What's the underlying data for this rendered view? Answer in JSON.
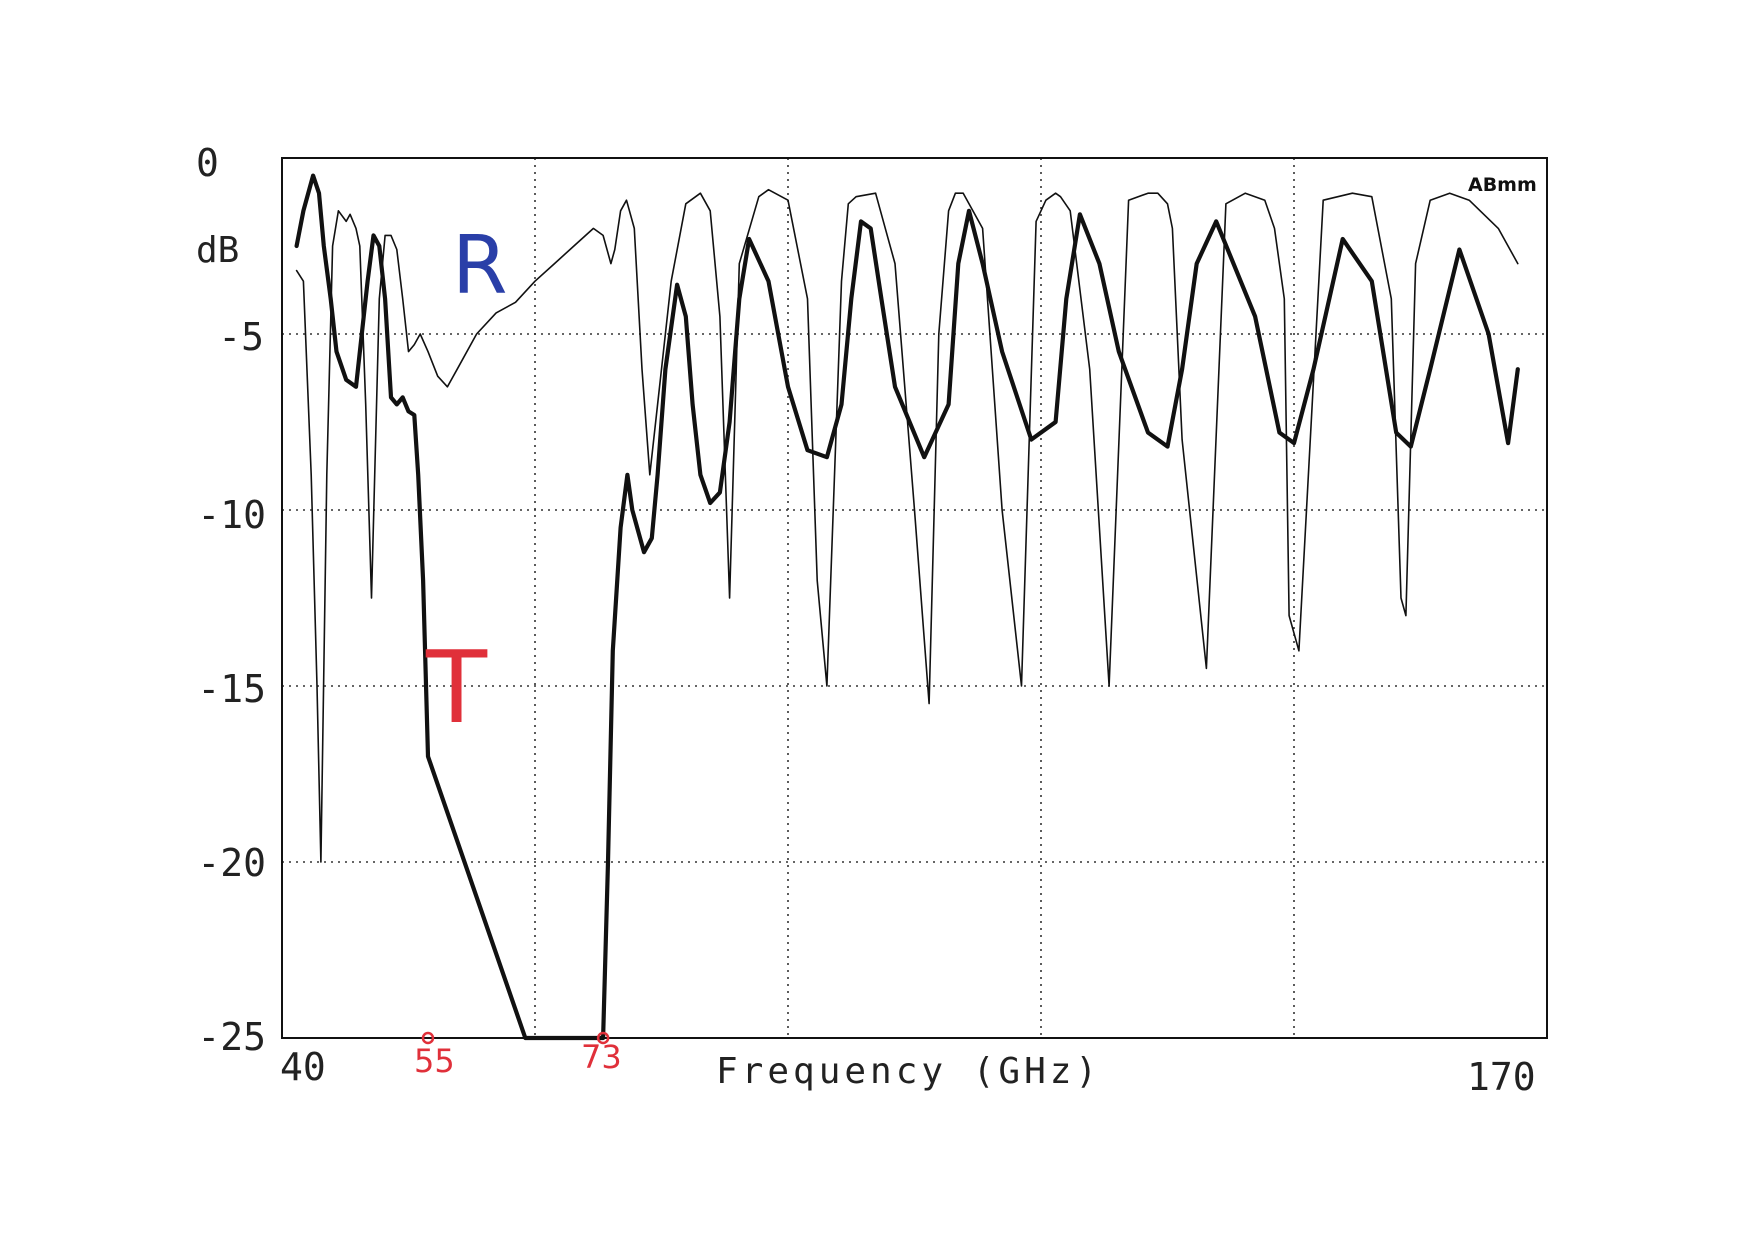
{
  "chart_data": {
    "type": "line",
    "xlabel": "Frequency (GHz)",
    "ylabel": "dB",
    "xlim": [
      40,
      170
    ],
    "ylim": [
      -25,
      0
    ],
    "x_tick_labels": [
      "40",
      "170"
    ],
    "y_tick_labels": [
      "0",
      "-5",
      "-10",
      "-15",
      "-20",
      "-25"
    ],
    "y_ticks": [
      0,
      -5,
      -10,
      -15,
      -20,
      -25
    ],
    "x_grid": [
      40,
      66,
      92,
      118,
      144,
      170
    ],
    "grid": true,
    "grid_style": "dotted",
    "logo_text": "ABmm",
    "series": [
      {
        "name": "R",
        "label_color": "#2a3fa8",
        "line": "thin",
        "x": [
          41.5,
          42.2,
          43.0,
          43.6,
          44.0,
          44.6,
          45.2,
          45.8,
          46.6,
          47.0,
          47.6,
          48.0,
          48.6,
          49.2,
          50.0,
          50.6,
          51.2,
          51.8,
          52.4,
          53.0,
          53.6,
          54.2,
          55.0,
          56.0,
          57.0,
          58.0,
          60.0,
          62.0,
          64.0,
          66.0,
          68.0,
          70.0,
          72.0,
          73.0,
          73.8,
          74.2,
          74.8,
          75.4,
          76.2,
          77.0,
          77.8,
          78.6,
          80.0,
          81.5,
          83.0,
          84.0,
          85.0,
          86.0,
          87.0,
          89.0,
          90.0,
          92.0,
          94.0,
          95.0,
          96.0,
          97.5,
          98.2,
          99.0,
          101.0,
          103.0,
          105.0,
          106.5,
          107.5,
          108.5,
          109.2,
          110.0,
          112.0,
          114.0,
          116.0,
          117.5,
          118.5,
          119.5,
          120.0,
          121.0,
          123.0,
          125.0,
          127.0,
          129.0,
          130.0,
          131.0,
          131.5,
          132.5,
          135.0,
          137.0,
          139.0,
          141.0,
          142.0,
          143.0,
          143.5,
          144.5,
          147.0,
          150.0,
          152.0,
          154.0,
          155.0,
          155.5,
          156.5,
          158.0,
          160.0,
          162.0,
          165.0,
          167.0
        ],
        "values": [
          -3.2,
          -3.5,
          -9.0,
          -15.0,
          -20.0,
          -9.0,
          -2.5,
          -1.5,
          -1.8,
          -1.6,
          -2.0,
          -2.5,
          -7.0,
          -12.5,
          -4.0,
          -2.2,
          -2.2,
          -2.6,
          -4.0,
          -5.5,
          -5.3,
          -5.0,
          -5.5,
          -6.2,
          -6.5,
          -6.0,
          -5.0,
          -4.4,
          -4.1,
          -3.5,
          -3.0,
          -2.5,
          -2.0,
          -2.2,
          -3.0,
          -2.6,
          -1.5,
          -1.2,
          -2.0,
          -6.0,
          -9.0,
          -7.0,
          -3.5,
          -1.3,
          -1.0,
          -1.5,
          -4.5,
          -12.5,
          -3.0,
          -1.1,
          -0.9,
          -1.2,
          -4.0,
          -12.0,
          -15.0,
          -3.5,
          -1.3,
          -1.1,
          -1.0,
          -3.0,
          -10.0,
          -15.5,
          -5.0,
          -1.5,
          -1.0,
          -1.0,
          -2.0,
          -10.0,
          -15.0,
          -1.8,
          -1.2,
          -1.0,
          -1.1,
          -1.5,
          -6.0,
          -15.0,
          -1.2,
          -1.0,
          -1.0,
          -1.3,
          -2.0,
          -8.0,
          -14.5,
          -1.3,
          -1.0,
          -1.2,
          -2.0,
          -4.0,
          -13.0,
          -14.0,
          -1.2,
          -1.0,
          -1.1,
          -4.0,
          -12.5,
          -13.0,
          -3.0,
          -1.2,
          -1.0,
          -1.2,
          -2.0,
          -3.0
        ]
      },
      {
        "name": "T",
        "label_color": "#e0303a",
        "line": "thick",
        "x": [
          41.5,
          42.2,
          43.2,
          43.8,
          44.3,
          45.0,
          45.6,
          46.6,
          47.6,
          48.2,
          48.8,
          49.4,
          50.0,
          50.6,
          51.2,
          51.8,
          52.4,
          53.0,
          53.6,
          54.0,
          54.5,
          55.0,
          65.0,
          65.6,
          73.0,
          73.5,
          74.0,
          74.8,
          75.5,
          76.0,
          77.2,
          78.0,
          78.6,
          79.4,
          80.6,
          81.5,
          82.2,
          83.0,
          84.0,
          85.0,
          86.0,
          87.0,
          88.0,
          90.0,
          92.0,
          94.0,
          96.0,
          97.5,
          98.5,
          99.5,
          100.5,
          101.6,
          103.0,
          106.0,
          108.5,
          109.5,
          110.6,
          112.0,
          114.0,
          117.0,
          119.5,
          120.6,
          122.0,
          124.0,
          126.0,
          129.0,
          131.0,
          132.5,
          134.0,
          136.0,
          140.0,
          142.5,
          144.0,
          146.0,
          149.0,
          152.0,
          154.5,
          156.0,
          158.0,
          161.0,
          164.0,
          166.0,
          167.0
        ],
        "values": [
          -2.5,
          -1.5,
          -0.5,
          -1.0,
          -2.5,
          -4.0,
          -5.5,
          -6.3,
          -6.5,
          -5.0,
          -3.5,
          -2.2,
          -2.5,
          -4.0,
          -6.8,
          -7.0,
          -6.8,
          -7.2,
          -7.3,
          -9.0,
          -12.0,
          -17.0,
          -25.0,
          -25.0,
          -25.0,
          -20.0,
          -14.0,
          -10.5,
          -9.0,
          -10.0,
          -11.2,
          -10.8,
          -9.0,
          -6.0,
          -3.6,
          -4.5,
          -7.0,
          -9.0,
          -9.8,
          -9.5,
          -7.5,
          -4.0,
          -2.3,
          -3.5,
          -6.5,
          -8.3,
          -8.5,
          -7.0,
          -4.0,
          -1.8,
          -2.0,
          -4.0,
          -6.5,
          -8.5,
          -7.0,
          -3.0,
          -1.5,
          -3.0,
          -5.5,
          -8.0,
          -7.5,
          -4.0,
          -1.6,
          -3.0,
          -5.5,
          -7.8,
          -8.2,
          -6.0,
          -3.0,
          -1.8,
          -4.5,
          -7.8,
          -8.1,
          -6.0,
          -2.3,
          -3.5,
          -7.8,
          -8.2,
          -6.0,
          -2.6,
          -5.0,
          -8.1,
          -6.0
        ]
      }
    ],
    "annotations": [
      {
        "text": "R",
        "color": "#2a3fa8"
      },
      {
        "text": "T",
        "color": "#e0303a"
      },
      {
        "text": "55",
        "x": 55,
        "y": -25,
        "color": "#e0303a"
      },
      {
        "text": "73",
        "x": 73,
        "y": -25,
        "color": "#e0303a"
      }
    ]
  }
}
